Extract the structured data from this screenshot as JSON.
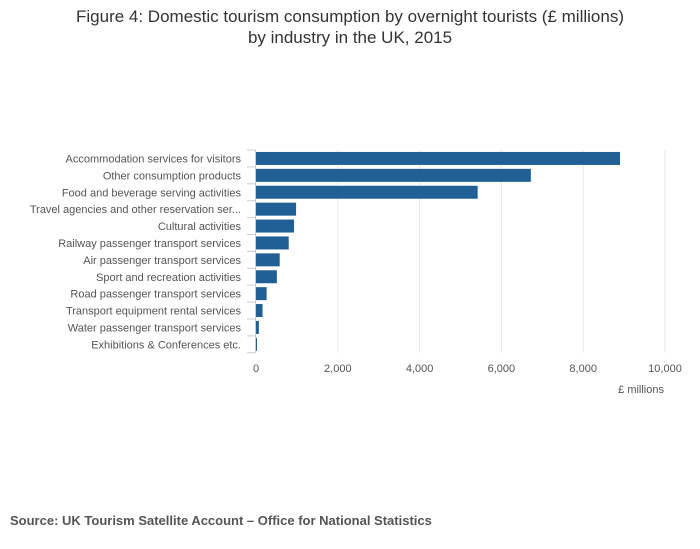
{
  "chart_data": {
    "type": "bar",
    "orientation": "horizontal",
    "title_line1": "Figure 4: Domestic tourism consumption by overnight tourists (£ millions)",
    "title_line2": "by industry in the UK, 2015",
    "xlabel": "£ millions",
    "ylabel": "",
    "xlim": [
      0,
      10000
    ],
    "xticks": [
      0,
      2000,
      4000,
      6000,
      8000,
      10000
    ],
    "xtick_labels": [
      "0",
      "2,000",
      "4,000",
      "6,000",
      "8,000",
      "10,000"
    ],
    "grid": true,
    "bar_color": "#206095",
    "categories": [
      "Accommodation services for visitors",
      "Other consumption products",
      "Food and beverage serving activities",
      "Travel agencies and other reservation ser...",
      "Cultural activities",
      "Railway passenger transport services",
      "Air passenger transport services",
      "Sport and recreation activities",
      "Road passenger transport services",
      "Transport equipment rental services",
      "Water passenger transport services",
      "Exhibitions & Conferences etc."
    ],
    "values": [
      8900,
      6720,
      5420,
      980,
      930,
      800,
      580,
      510,
      260,
      160,
      70,
      20
    ]
  },
  "source": "Source: UK Tourism Satellite Account – Office for National Statistics"
}
